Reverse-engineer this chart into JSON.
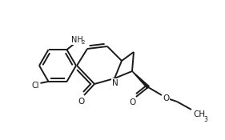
{
  "background_color": "#ffffff",
  "line_color": "#1a1a1a",
  "line_width": 1.4,
  "figsize": [
    2.81,
    1.75
  ],
  "dpi": 100,
  "xlim": [
    0,
    281
  ],
  "ylim": [
    0,
    175
  ]
}
